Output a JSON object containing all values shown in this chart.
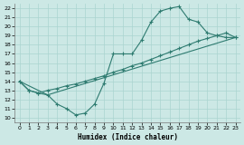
{
  "xlabel": "Humidex (Indice chaleur)",
  "xlim": [
    -0.5,
    23.5
  ],
  "ylim": [
    9.5,
    22.5
  ],
  "xticks": [
    0,
    1,
    2,
    3,
    4,
    5,
    6,
    7,
    8,
    9,
    10,
    11,
    12,
    13,
    14,
    15,
    16,
    17,
    18,
    19,
    20,
    21,
    22,
    23
  ],
  "yticks": [
    10,
    11,
    12,
    13,
    14,
    15,
    16,
    17,
    18,
    19,
    20,
    21,
    22
  ],
  "bg_color": "#cce8e5",
  "grid_color": "#aad4d0",
  "line_color": "#2e7b70",
  "curve1_x": [
    0,
    1,
    2,
    3,
    4,
    5,
    6,
    7,
    8,
    9,
    10,
    11,
    12,
    13,
    14,
    15,
    16,
    17,
    18,
    19,
    20,
    21,
    22,
    23
  ],
  "curve1_y": [
    14,
    13,
    12.7,
    12.5,
    11.5,
    11.0,
    10.3,
    10.5,
    11.5,
    13.8,
    17.0,
    17.0,
    17.0,
    18.5,
    20.5,
    21.7,
    22.0,
    22.2,
    20.8,
    20.5,
    19.3,
    19.0,
    18.8,
    18.8
  ],
  "curve2_x": [
    0,
    1,
    2,
    3,
    4,
    5,
    6,
    7,
    8,
    9,
    10,
    11,
    12,
    13,
    14,
    15,
    16,
    17,
    18,
    19,
    20,
    21,
    22,
    23
  ],
  "curve2_y": [
    14,
    13,
    12.7,
    13.0,
    13.2,
    13.5,
    13.7,
    14.0,
    14.3,
    14.6,
    15.0,
    15.3,
    15.7,
    16.0,
    16.4,
    16.8,
    17.2,
    17.6,
    18.0,
    18.4,
    18.7,
    19.0,
    19.3,
    18.8
  ],
  "curve3_x": [
    0,
    3,
    23
  ],
  "curve3_y": [
    14,
    12.5,
    18.8
  ]
}
